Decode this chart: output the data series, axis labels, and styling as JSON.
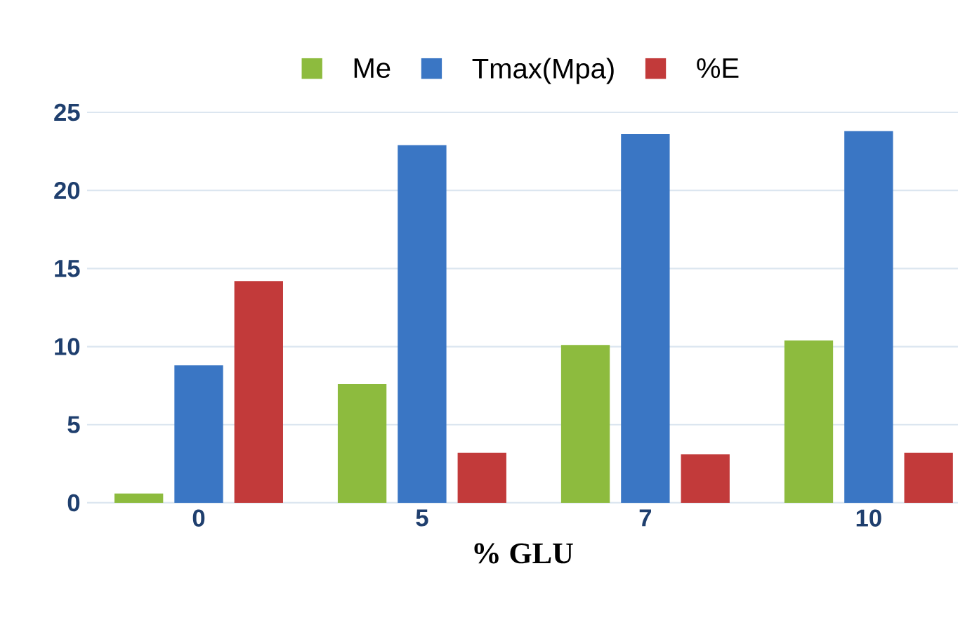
{
  "chart_data": {
    "type": "bar",
    "xlabel": "% GLU",
    "categories": [
      "0",
      "5",
      "7",
      "10"
    ],
    "series": [
      {
        "name": "Me",
        "color": "#8dbb3e",
        "values": [
          0.6,
          7.6,
          10.1,
          10.4
        ]
      },
      {
        "name": "Tmax(Mpa)",
        "color": "#3a76c4",
        "values": [
          8.8,
          22.9,
          23.6,
          23.8
        ]
      },
      {
        "name": "%E",
        "color": "#c23a3a",
        "values": [
          14.2,
          3.2,
          3.1,
          3.2
        ]
      }
    ],
    "ylim": [
      0,
      25
    ],
    "yticks": [
      0,
      5,
      10,
      15,
      20,
      25
    ],
    "grid": "y",
    "legend": "top"
  }
}
